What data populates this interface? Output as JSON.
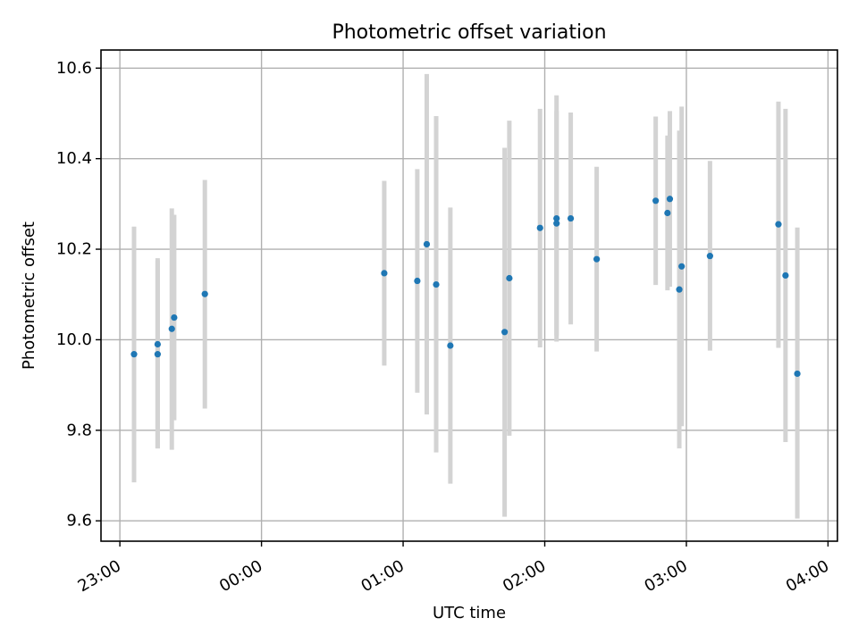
{
  "chart_data": {
    "type": "scatter",
    "title": "Photometric offset variation",
    "xlabel": "UTC time",
    "ylabel": "Photometric offset",
    "xlim": [
      "22:52",
      "04:04"
    ],
    "ylim": [
      9.555,
      10.64
    ],
    "x_ticks": [
      "23:00",
      "00:00",
      "01:00",
      "02:00",
      "03:00",
      "04:00"
    ],
    "y_ticks": [
      "9.6",
      "9.8",
      "10.0",
      "10.2",
      "10.4",
      "10.6"
    ],
    "y_tick_values": [
      9.6,
      9.8,
      10.0,
      10.2,
      10.4,
      10.6
    ],
    "grid": true,
    "series": [
      {
        "marker_color": "#1f77b4",
        "errorbar_color": "#d3d3d3",
        "points": [
          {
            "time": "23:06",
            "y": 9.968,
            "ylow": 9.685,
            "yhigh": 10.25
          },
          {
            "time": "23:16",
            "y": 9.99,
            "ylow": 9.76,
            "yhigh": 10.18
          },
          {
            "time": "23:16",
            "y": 9.968,
            "ylow": 9.76,
            "yhigh": 10.175
          },
          {
            "time": "23:22",
            "y": 10.024,
            "ylow": 9.757,
            "yhigh": 10.29
          },
          {
            "time": "23:23",
            "y": 10.049,
            "ylow": 9.822,
            "yhigh": 10.276
          },
          {
            "time": "23:36",
            "y": 10.101,
            "ylow": 9.848,
            "yhigh": 10.353
          },
          {
            "time": "00:52",
            "y": 10.147,
            "ylow": 9.943,
            "yhigh": 10.351
          },
          {
            "time": "01:06",
            "y": 10.13,
            "ylow": 9.883,
            "yhigh": 10.377
          },
          {
            "time": "01:10",
            "y": 10.211,
            "ylow": 9.835,
            "yhigh": 10.587
          },
          {
            "time": "01:14",
            "y": 10.122,
            "ylow": 9.751,
            "yhigh": 10.494
          },
          {
            "time": "01:20",
            "y": 9.987,
            "ylow": 9.682,
            "yhigh": 10.292
          },
          {
            "time": "01:43",
            "y": 10.017,
            "ylow": 9.609,
            "yhigh": 10.424
          },
          {
            "time": "01:45",
            "y": 10.136,
            "ylow": 9.788,
            "yhigh": 10.484
          },
          {
            "time": "01:58",
            "y": 10.247,
            "ylow": 9.983,
            "yhigh": 10.51
          },
          {
            "time": "02:05",
            "y": 10.268,
            "ylow": 9.996,
            "yhigh": 10.54
          },
          {
            "time": "02:05",
            "y": 10.257,
            "ylow": 10.009,
            "yhigh": 10.505
          },
          {
            "time": "02:11",
            "y": 10.268,
            "ylow": 10.034,
            "yhigh": 10.502
          },
          {
            "time": "02:22",
            "y": 10.178,
            "ylow": 9.974,
            "yhigh": 10.382
          },
          {
            "time": "02:47",
            "y": 10.307,
            "ylow": 10.121,
            "yhigh": 10.493
          },
          {
            "time": "02:52",
            "y": 10.28,
            "ylow": 10.109,
            "yhigh": 10.451
          },
          {
            "time": "02:53",
            "y": 10.311,
            "ylow": 10.117,
            "yhigh": 10.505
          },
          {
            "time": "02:57",
            "y": 10.111,
            "ylow": 9.76,
            "yhigh": 10.462
          },
          {
            "time": "02:58",
            "y": 10.162,
            "ylow": 9.809,
            "yhigh": 10.515
          },
          {
            "time": "03:10",
            "y": 10.185,
            "ylow": 9.976,
            "yhigh": 10.395
          },
          {
            "time": "03:39",
            "y": 10.255,
            "ylow": 9.982,
            "yhigh": 10.526
          },
          {
            "time": "03:42",
            "y": 10.142,
            "ylow": 9.774,
            "yhigh": 10.51
          },
          {
            "time": "03:47",
            "y": 9.925,
            "ylow": 9.605,
            "yhigh": 10.248
          }
        ]
      }
    ]
  }
}
